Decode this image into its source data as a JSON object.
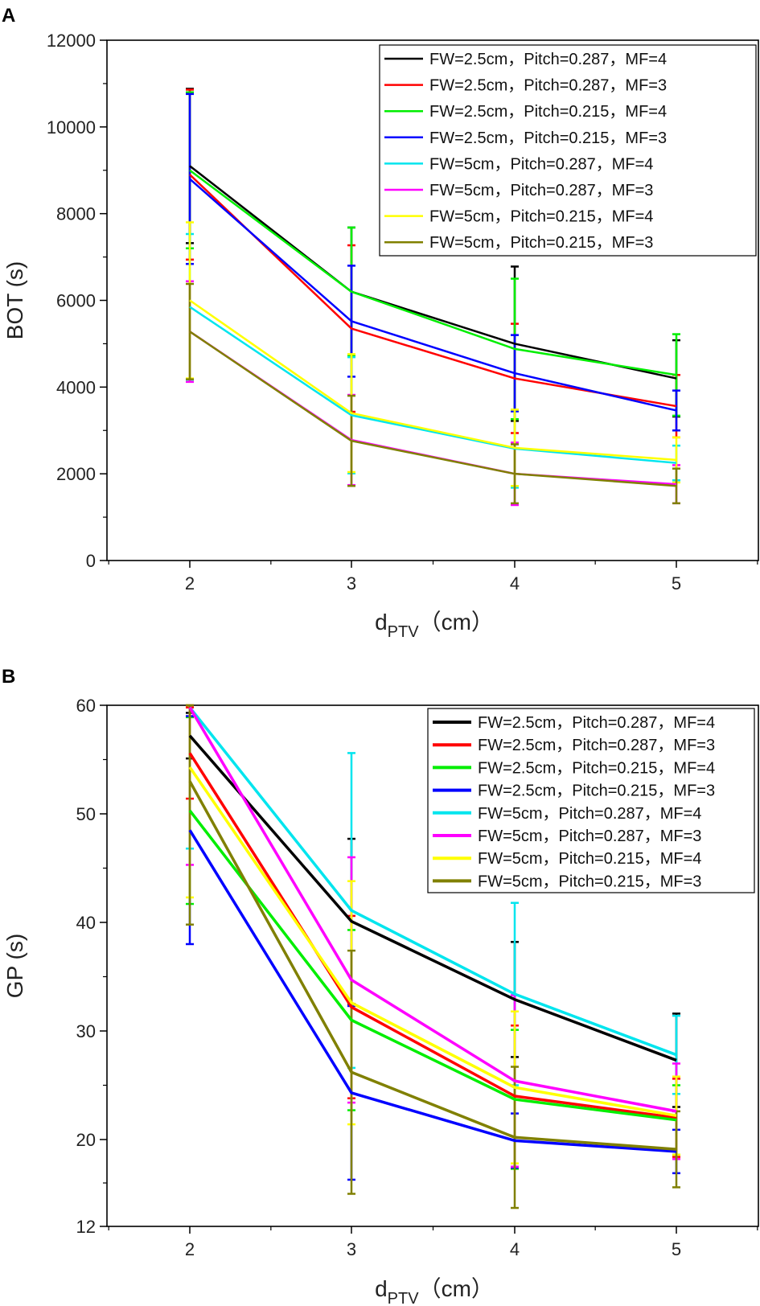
{
  "chart_data": [
    {
      "panel": "A",
      "type": "line",
      "error_bars": true,
      "ylabel": "BOT (s)",
      "xlabel_main": "d",
      "xlabel_sub": "PTV",
      "xlabel_unit": "（cm）",
      "x": [
        2,
        3,
        4,
        5
      ],
      "x_tick_labels": [
        "2",
        "3",
        "4",
        "5"
      ],
      "ylim": [
        0,
        12000
      ],
      "y_ticks": [
        0,
        2000,
        4000,
        6000,
        8000,
        10000,
        12000
      ],
      "y_tick_labels": [
        "0",
        "2000",
        "4000",
        "6000",
        "8000",
        "10000",
        "12000"
      ],
      "legend_position": "top-right",
      "series": [
        {
          "name": "FW=2.5cm，Pitch=0.287，MF=4",
          "color": "#000000",
          "values": [
            9100,
            6200,
            5000,
            4200
          ],
          "err": [
            1780,
            1480,
            1780,
            880
          ]
        },
        {
          "name": "FW=2.5cm，Pitch=0.287，MF=3",
          "color": "#ff0000",
          "values": [
            8900,
            5350,
            4200,
            3560
          ],
          "err": [
            1960,
            1920,
            1260,
            720
          ]
        },
        {
          "name": "FW=2.5cm，Pitch=0.215，MF=4",
          "color": "#00ee00",
          "values": [
            9000,
            6200,
            4880,
            4280
          ],
          "err": [
            1800,
            1480,
            1620,
            940
          ]
        },
        {
          "name": "FW=2.5cm，Pitch=0.215，MF=3",
          "color": "#0000ff",
          "values": [
            8800,
            5520,
            4320,
            3460
          ],
          "err": [
            1960,
            1280,
            880,
            460
          ]
        },
        {
          "name": "FW=5cm，Pitch=0.287，MF=4",
          "color": "#00e5ee",
          "values": [
            5850,
            3350,
            2580,
            2250
          ],
          "err": [
            1680,
            1340,
            900,
            400
          ]
        },
        {
          "name": "FW=5cm，Pitch=0.287，MF=3",
          "color": "#ff00ff",
          "values": [
            5280,
            2780,
            2000,
            1760
          ],
          "err": [
            1160,
            1040,
            720,
            440
          ]
        },
        {
          "name": "FW=5cm，Pitch=0.215，MF=4",
          "color": "#ffff00",
          "values": [
            6000,
            3400,
            2600,
            2320
          ],
          "err": [
            1800,
            1360,
            880,
            520
          ]
        },
        {
          "name": "FW=5cm，Pitch=0.215，MF=3",
          "color": "#808000",
          "values": [
            5280,
            2760,
            2000,
            1720
          ],
          "err": [
            1100,
            1040,
            680,
            400
          ]
        }
      ]
    },
    {
      "panel": "B",
      "type": "line",
      "error_bars": true,
      "ylabel": "GP (s)",
      "xlabel_main": "d",
      "xlabel_sub": "PTV",
      "xlabel_unit": "（cm）",
      "x": [
        2,
        3,
        4,
        5
      ],
      "x_tick_labels": [
        "2",
        "3",
        "4",
        "5"
      ],
      "ylim": [
        12,
        60
      ],
      "y_ticks": [
        12,
        20,
        30,
        40,
        50,
        60
      ],
      "y_tick_labels": [
        "12",
        "20",
        "30",
        "40",
        "50",
        "60"
      ],
      "legend_position": "top-right",
      "series": [
        {
          "name": "FW=2.5cm，Pitch=0.287，MF=4",
          "color": "#000000",
          "values": [
            57.2,
            40.1,
            32.9,
            27.3
          ],
          "err": [
            2.1,
            7.6,
            5.3,
            4.3
          ]
        },
        {
          "name": "FW=2.5cm，Pitch=0.287，MF=3",
          "color": "#ff0000",
          "values": [
            55.6,
            32.2,
            24.0,
            22.0
          ],
          "err": [
            4.2,
            8.4,
            6.5,
            3.6
          ]
        },
        {
          "name": "FW=2.5cm，Pitch=0.215，MF=4",
          "color": "#00ee00",
          "values": [
            50.3,
            31.0,
            23.7,
            21.8
          ],
          "err": [
            8.6,
            8.3,
            6.4,
            3.2
          ]
        },
        {
          "name": "FW=2.5cm，Pitch=0.215，MF=3",
          "color": "#0000ff",
          "values": [
            48.5,
            24.3,
            19.9,
            18.9
          ],
          "err": [
            10.5,
            8.0,
            2.5,
            2.0
          ]
        },
        {
          "name": "FW=5cm，Pitch=0.287，MF=4",
          "color": "#00e5ee",
          "values": [
            59.8,
            41.1,
            33.4,
            27.8
          ],
          "err": [
            13.0,
            14.5,
            8.4,
            3.6
          ]
        },
        {
          "name": "FW=5cm，Pitch=0.287，MF=3",
          "color": "#ff00ff",
          "values": [
            59.8,
            34.7,
            25.4,
            22.6
          ],
          "err": [
            14.5,
            11.3,
            7.9,
            4.4
          ]
        },
        {
          "name": "FW=5cm，Pitch=0.215，MF=4",
          "color": "#ffff00",
          "values": [
            54.3,
            32.6,
            24.8,
            22.2
          ],
          "err": [
            12.0,
            11.2,
            7.0,
            3.6
          ]
        },
        {
          "name": "FW=5cm，Pitch=0.215，MF=3",
          "color": "#808000",
          "values": [
            53.0,
            26.2,
            20.2,
            19.1
          ],
          "err": [
            13.2,
            11.2,
            6.5,
            3.5
          ]
        }
      ]
    }
  ]
}
